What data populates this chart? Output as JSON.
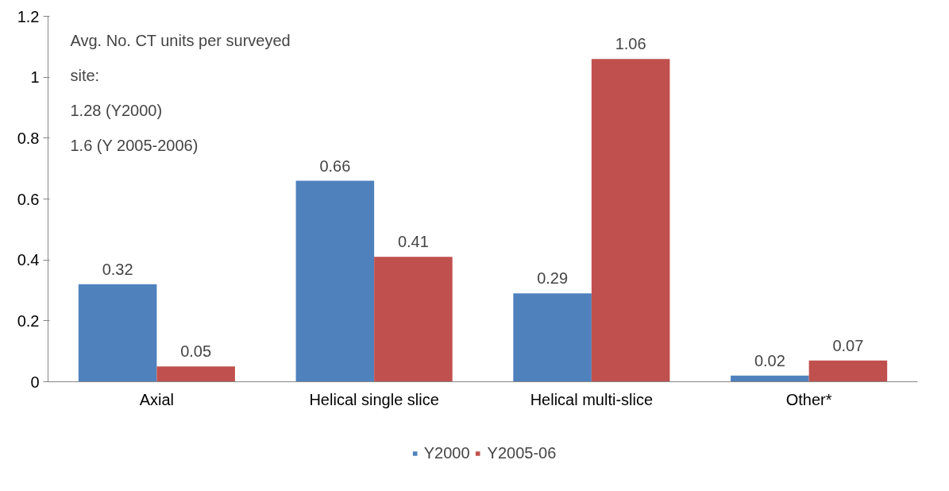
{
  "chart_data": {
    "type": "bar",
    "categories": [
      "Axial",
      "Helical single slice",
      "Helical multi-slice",
      "Other*"
    ],
    "series": [
      {
        "name": "Y2000",
        "color": "#4f81bd",
        "values": [
          0.32,
          0.66,
          0.29,
          0.02
        ]
      },
      {
        "name": "Y2005-06",
        "color": "#c0504d",
        "values": [
          0.05,
          0.41,
          1.06,
          0.07
        ]
      }
    ],
    "ylim": [
      0,
      1.2
    ],
    "yticks": [
      0,
      0.2,
      0.4,
      0.6,
      0.8,
      1,
      1.2
    ],
    "grid": false,
    "legend": "bottom",
    "data_labels": true,
    "annotations": [
      "Avg. No. CT units per surveyed site:",
      "1.28 (Y2000)",
      "1.6 (Y 2005-2006)"
    ]
  }
}
